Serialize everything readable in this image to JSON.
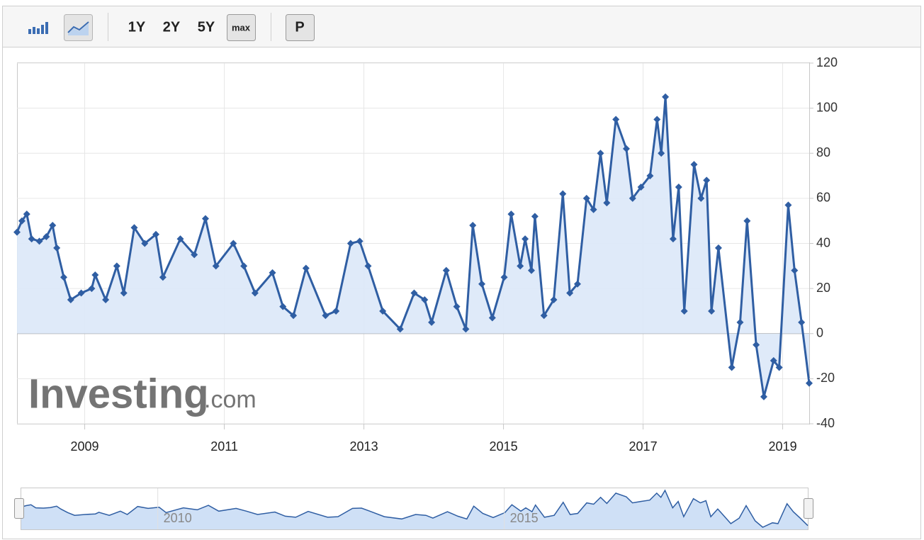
{
  "toolbar": {
    "buttons": [
      "1Y",
      "2Y",
      "5Y",
      "max",
      "P"
    ]
  },
  "watermark": {
    "brand": "Investing",
    "suffix": ".com"
  },
  "chart_data": {
    "type": "line",
    "x": [
      2008.03,
      2008.1,
      2008.17,
      2008.24,
      2008.35,
      2008.45,
      2008.54,
      2008.6,
      2008.7,
      2008.8,
      2008.95,
      2009.1,
      2009.15,
      2009.3,
      2009.46,
      2009.56,
      2009.71,
      2009.86,
      2010.02,
      2010.12,
      2010.37,
      2010.57,
      2010.73,
      2010.88,
      2011.13,
      2011.28,
      2011.44,
      2011.69,
      2011.84,
      2011.99,
      2012.17,
      2012.45,
      2012.6,
      2012.81,
      2012.94,
      2013.06,
      2013.27,
      2013.52,
      2013.72,
      2013.87,
      2013.97,
      2014.18,
      2014.33,
      2014.46,
      2014.56,
      2014.69,
      2014.84,
      2015.01,
      2015.11,
      2015.24,
      2015.31,
      2015.4,
      2015.45,
      2015.58,
      2015.72,
      2015.85,
      2015.95,
      2016.06,
      2016.19,
      2016.29,
      2016.39,
      2016.48,
      2016.61,
      2016.76,
      2016.85,
      2016.97,
      2017.1,
      2017.2,
      2017.26,
      2017.32,
      2017.43,
      2017.51,
      2017.59,
      2017.73,
      2017.83,
      2017.91,
      2017.98,
      2018.08,
      2018.27,
      2018.39,
      2018.49,
      2018.62,
      2018.73,
      2018.87,
      2018.95,
      2019.08,
      2019.17,
      2019.27,
      2019.38
    ],
    "series": [
      {
        "color": "#2f5ea3",
        "values": [
          45,
          50,
          53,
          42,
          41,
          43,
          48,
          38,
          25,
          15,
          18,
          20,
          26,
          15,
          30,
          18,
          47,
          40,
          44,
          25,
          42,
          35,
          51,
          30,
          40,
          30,
          18,
          27,
          12,
          8,
          29,
          8,
          10,
          40,
          41,
          30,
          10,
          2,
          18,
          15,
          5,
          28,
          12,
          2,
          48,
          22,
          7,
          25,
          53,
          30,
          42,
          28,
          52,
          8,
          15,
          62,
          18,
          22,
          60,
          55,
          80,
          58,
          95,
          82,
          60,
          65,
          70,
          95,
          80,
          105,
          42,
          65,
          10,
          75,
          60,
          68,
          10,
          38,
          -15,
          5,
          50,
          -5,
          -28,
          -12,
          -15,
          57,
          28,
          5,
          -22
        ]
      }
    ],
    "xlim": [
      2008.03,
      2019.38
    ],
    "xticks": [
      2009,
      2011,
      2013,
      2015,
      2017,
      2019
    ],
    "ylim": [
      -40,
      120
    ],
    "yticks": [
      -40,
      -20,
      0,
      20,
      40,
      60,
      80,
      100,
      120
    ],
    "grid": true,
    "navigator_xticks": [
      2010,
      2015
    ]
  }
}
